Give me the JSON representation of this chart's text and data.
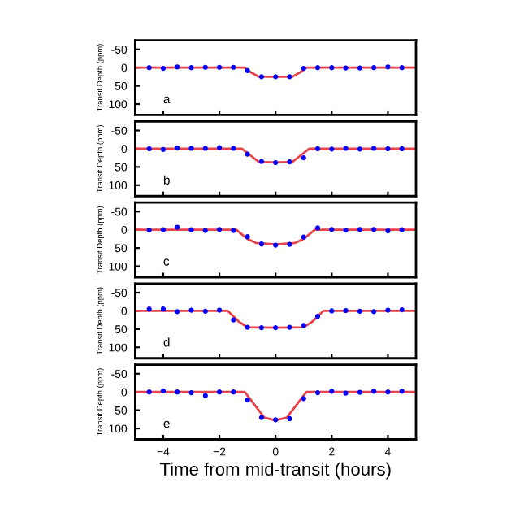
{
  "chart_data": [
    {
      "type": "scatter",
      "ylabel": "Transit Depth (ppm)",
      "annotations": [
        "a"
      ],
      "xlim": [
        -5,
        5
      ],
      "xticks": [
        -4,
        -2,
        0,
        2,
        4
      ],
      "ylim": [
        130,
        -75
      ],
      "yticks": [
        -50,
        0,
        50,
        100
      ],
      "tick_labels": "y",
      "series": [
        {
          "type": "line",
          "color": "#e8434b",
          "line_style": "solid",
          "marker": "none",
          "x": [
            -5,
            -1.1,
            -0.9,
            -0.6,
            0,
            0.6,
            0.9,
            1.1,
            5
          ],
          "values": [
            0,
            0,
            12,
            25,
            25,
            25,
            12,
            0,
            0
          ]
        },
        {
          "type": "scatter",
          "color": "#0000ff",
          "marker": "circle",
          "x": [
            -4.5,
            -4,
            -3.5,
            -3,
            -2.5,
            -2,
            -1.5,
            -1,
            -0.5,
            0,
            0.5,
            1,
            1.5,
            2,
            2.5,
            3,
            3.5,
            4,
            4.5
          ],
          "values": [
            0,
            2,
            -2,
            0,
            -1,
            -1,
            -1,
            8,
            25,
            25,
            25,
            2,
            0,
            0,
            1,
            1,
            0,
            -2,
            0
          ]
        }
      ]
    },
    {
      "type": "scatter",
      "ylabel": "Transit Depth (ppm)",
      "annotations": [
        "b"
      ],
      "xlim": [
        -5,
        5
      ],
      "xticks": [
        -4,
        -2,
        0,
        2,
        4
      ],
      "ylim": [
        130,
        -75
      ],
      "yticks": [
        -50,
        0,
        50,
        100
      ],
      "tick_labels": "y",
      "series": [
        {
          "type": "line",
          "color": "#e8434b",
          "line_style": "solid",
          "marker": "none",
          "x": [
            -5,
            -1.2,
            -0.9,
            -0.6,
            0,
            0.6,
            0.9,
            1.2,
            5
          ],
          "values": [
            0,
            0,
            18,
            36,
            38,
            36,
            18,
            0,
            0
          ]
        },
        {
          "type": "scatter",
          "color": "#0000ff",
          "marker": "circle",
          "x": [
            -4.5,
            -4,
            -3.5,
            -3,
            -2.5,
            -2,
            -1.5,
            -1,
            -0.5,
            0,
            0.5,
            1,
            1.5,
            2,
            2.5,
            3,
            3.5,
            4,
            4.5
          ],
          "values": [
            0,
            2,
            -2,
            -1,
            -1,
            -3,
            -1,
            15,
            35,
            38,
            36,
            25,
            0,
            1,
            -1,
            1,
            -1,
            0,
            0
          ]
        }
      ]
    },
    {
      "type": "scatter",
      "ylabel": "Transit Depth (ppm)",
      "annotations": [
        "c"
      ],
      "xlim": [
        -5,
        5
      ],
      "xticks": [
        -4,
        -2,
        0,
        2,
        4
      ],
      "ylim": [
        130,
        -75
      ],
      "yticks": [
        -50,
        0,
        50,
        100
      ],
      "tick_labels": "y",
      "series": [
        {
          "type": "line",
          "color": "#e8434b",
          "line_style": "solid",
          "marker": "none",
          "x": [
            -5,
            -1.4,
            -1,
            -0.7,
            0,
            0.7,
            1,
            1.4,
            5
          ],
          "values": [
            0,
            0,
            25,
            36,
            40,
            36,
            25,
            0,
            0
          ]
        },
        {
          "type": "scatter",
          "color": "#0000ff",
          "marker": "circle",
          "x": [
            -4.5,
            -4,
            -3.5,
            -3,
            -2.5,
            -2,
            -1.5,
            -1,
            -0.5,
            0,
            0.5,
            1,
            1.5,
            2,
            2.5,
            3,
            3.5,
            4,
            4.5
          ],
          "values": [
            1,
            0,
            -7,
            0,
            2,
            -1,
            2,
            19,
            39,
            42,
            40,
            20,
            -5,
            -1,
            1,
            -1,
            -1,
            3,
            0
          ]
        }
      ]
    },
    {
      "type": "scatter",
      "ylabel": "Transit Depth (ppm)",
      "annotations": [
        "d"
      ],
      "xlim": [
        -5,
        5
      ],
      "xticks": [
        -4,
        -2,
        0,
        2,
        4
      ],
      "ylim": [
        130,
        -75
      ],
      "yticks": [
        -50,
        0,
        50,
        100
      ],
      "tick_labels": "y",
      "series": [
        {
          "type": "line",
          "color": "#e8434b",
          "line_style": "solid",
          "marker": "none",
          "x": [
            -5,
            -1.7,
            -1.3,
            -1,
            0,
            1,
            1.3,
            1.7,
            5
          ],
          "values": [
            0,
            0,
            30,
            45,
            46,
            45,
            30,
            0,
            0
          ]
        },
        {
          "type": "scatter",
          "color": "#0000ff",
          "marker": "circle",
          "x": [
            -4.5,
            -4,
            -3.5,
            -3,
            -2.5,
            -2,
            -1.5,
            -1,
            -0.5,
            0,
            0.5,
            1,
            1.5,
            2,
            2.5,
            3,
            3.5,
            4,
            4.5
          ],
          "values": [
            -5,
            -5,
            2,
            -2,
            1,
            -2,
            25,
            45,
            46,
            46,
            45,
            40,
            15,
            0,
            -1,
            1,
            2,
            -2,
            -3
          ]
        }
      ]
    },
    {
      "type": "scatter",
      "xlabel": "Time from mid-transit (hours)",
      "ylabel": "Transit Depth (ppm)",
      "annotations": [
        "e"
      ],
      "xlim": [
        -5,
        5
      ],
      "xticks": [
        {
          "value": -4,
          "label": "−4"
        },
        {
          "value": -2,
          "label": "−2"
        },
        0,
        2,
        4
      ],
      "ylim": [
        130,
        -75
      ],
      "yticks": [
        -50,
        0,
        50,
        100
      ],
      "series": [
        {
          "type": "line",
          "color": "#e8434b",
          "line_style": "solid",
          "marker": "none",
          "x": [
            -5,
            -1.1,
            -0.7,
            -0.4,
            0,
            0.4,
            0.7,
            1.1,
            5
          ],
          "values": [
            0,
            0,
            40,
            70,
            78,
            70,
            40,
            0,
            0
          ]
        },
        {
          "type": "scatter",
          "color": "#0000ff",
          "marker": "circle",
          "x": [
            -4.5,
            -4,
            -3.5,
            -3,
            -2.5,
            -2,
            -1.5,
            -1,
            -0.5,
            0,
            0.5,
            1,
            1.5,
            2,
            2.5,
            3,
            3.5,
            4,
            4.5
          ],
          "values": [
            0,
            -3,
            0,
            2,
            10,
            0,
            0,
            22,
            70,
            76,
            73,
            18,
            2,
            -2,
            3,
            1,
            -2,
            0,
            -2
          ]
        }
      ]
    }
  ]
}
